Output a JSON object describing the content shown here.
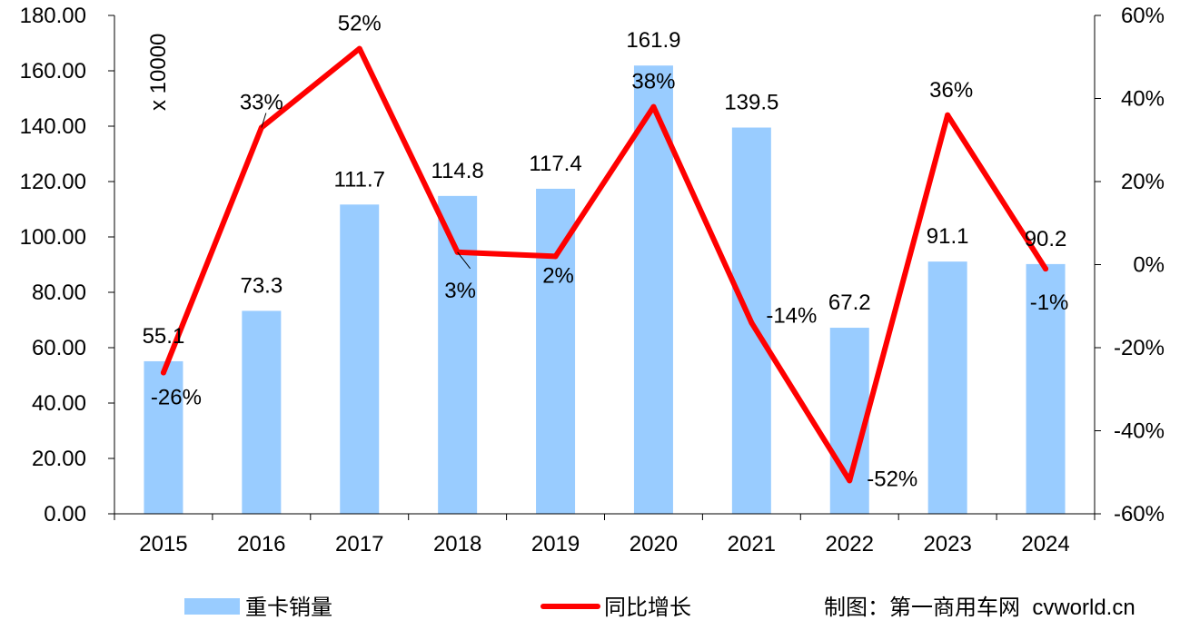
{
  "chart_data": {
    "type": "bar",
    "categories": [
      "2015",
      "2016",
      "2017",
      "2018",
      "2019",
      "2020",
      "2021",
      "2022",
      "2023",
      "2024"
    ],
    "series": [
      {
        "name": "重卡销量",
        "type": "bar",
        "axis": "left",
        "color": "#99ccff",
        "values": [
          55.1,
          73.3,
          111.7,
          114.8,
          117.4,
          161.9,
          139.5,
          67.2,
          91.1,
          90.2
        ],
        "labels": [
          "55.1",
          "73.3",
          "111.7",
          "114.8",
          "117.4",
          "161.9",
          "139.5",
          "67.2",
          "91.1",
          "90.2"
        ]
      },
      {
        "name": "同比增长",
        "type": "line",
        "axis": "right",
        "color": "#ff0000",
        "values": [
          -26,
          33,
          52,
          3,
          2,
          38,
          -14,
          -52,
          36,
          -1
        ],
        "labels": [
          "-26%",
          "33%",
          "52%",
          "3%",
          "2%",
          "38%",
          "-14%",
          "-52%",
          "36%",
          "-1%"
        ]
      }
    ],
    "y_left": {
      "ylim": [
        0,
        180
      ],
      "ticks": [
        "0.00",
        "20.00",
        "40.00",
        "60.00",
        "80.00",
        "100.00",
        "120.00",
        "140.00",
        "160.00",
        "180.00"
      ],
      "unit_label": "x 10000"
    },
    "y_right": {
      "ylim": [
        -60,
        60
      ],
      "ticks": [
        "-60%",
        "-40%",
        "-20%",
        "0%",
        "20%",
        "40%",
        "60%"
      ]
    },
    "grid": false,
    "legend_position": "bottom"
  },
  "credit": "制图：第一商用车网  cvworld.cn"
}
